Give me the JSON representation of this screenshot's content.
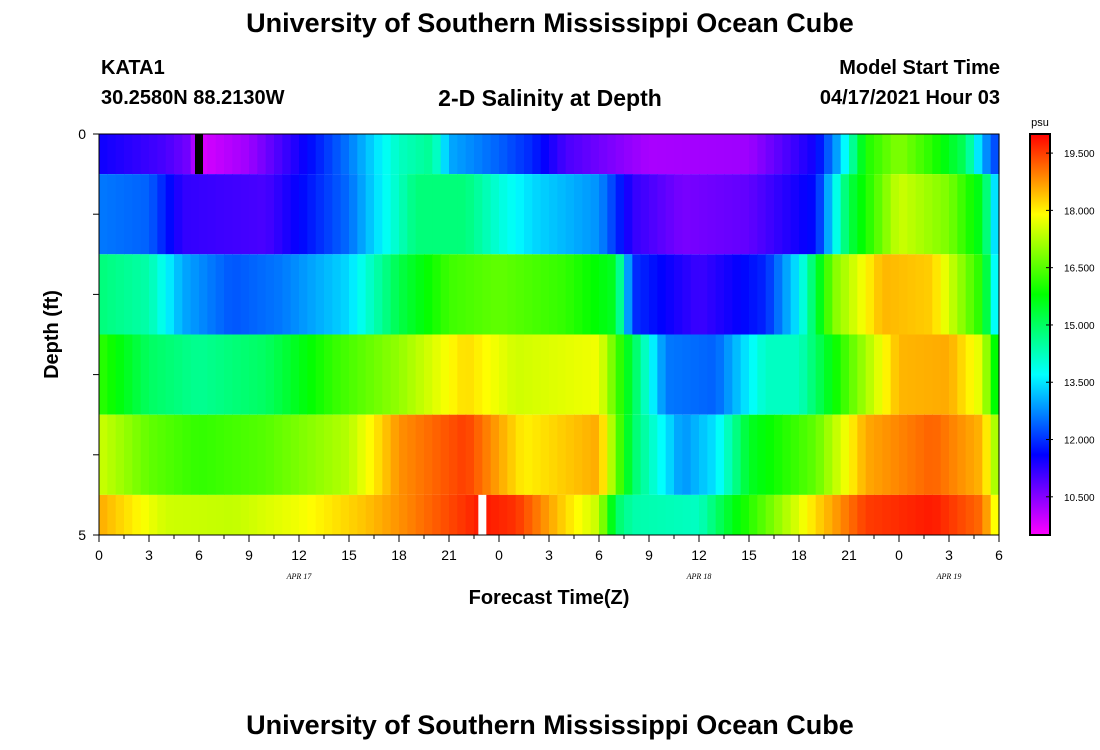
{
  "title": "University of Southern Mississippi Ocean Cube",
  "footer_title": "University of Southern Mississippi Ocean Cube",
  "station": {
    "id": "KATA1",
    "coords": "30.2580N  88.2130W"
  },
  "subtitle": "2-D Salinity at Depth",
  "model_start": {
    "label": "Model Start Time",
    "value": "04/17/2021 Hour 03"
  },
  "chart_data": {
    "type": "heatmap",
    "title": "2-D Salinity at Depth",
    "xlabel": "Forecast Time(Z)",
    "ylabel": "Depth (ft)",
    "x_hours": [
      0,
      54
    ],
    "x_tick_labels": [
      "0",
      "3",
      "6",
      "9",
      "12",
      "15",
      "18",
      "21",
      "0",
      "3",
      "6",
      "9",
      "12",
      "15",
      "18",
      "21",
      "0",
      "3",
      "6"
    ],
    "date_labels": [
      {
        "text": "APR 17",
        "hour": 12
      },
      {
        "text": "APR 18",
        "hour": 36
      },
      {
        "text": "APR 19",
        "hour": 51
      }
    ],
    "y_tick_labels": [
      "0",
      "5"
    ],
    "ylim": [
      0,
      5
    ],
    "colorbar": {
      "unit": "psu",
      "range": [
        9.5,
        20.0
      ],
      "tick_values": [
        10.5,
        12.0,
        13.5,
        15.0,
        16.5,
        18.0,
        19.5
      ],
      "tick_labels": [
        "10.500",
        "12.000",
        "13.500",
        "15.000",
        "16.500",
        "18.000",
        "19.500"
      ]
    },
    "rows": [
      {
        "depth_range": [
          0,
          0.5
        ],
        "knots": [
          [
            0,
            11.5
          ],
          [
            4,
            11.0
          ],
          [
            5.5,
            10.6
          ],
          [
            6,
            9.8
          ],
          [
            9,
            10.3
          ],
          [
            13,
            11.8
          ],
          [
            15,
            12.6
          ],
          [
            18,
            14.2
          ],
          [
            20,
            14.6
          ],
          [
            21,
            13.0
          ],
          [
            24,
            12.4
          ],
          [
            26,
            11.9
          ],
          [
            28,
            11.0
          ],
          [
            33,
            10.2
          ],
          [
            39,
            10.3
          ],
          [
            43,
            11.5
          ],
          [
            44.5,
            13.2
          ],
          [
            46,
            16.0
          ],
          [
            48,
            16.9
          ],
          [
            50,
            16.1
          ],
          [
            52,
            15.0
          ],
          [
            53,
            13.0
          ],
          [
            54,
            12.0
          ]
        ]
      },
      {
        "depth_range": [
          0.5,
          1.5
        ],
        "knots": [
          [
            0,
            12.6
          ],
          [
            3,
            12.4
          ],
          [
            5,
            11.2
          ],
          [
            10,
            11.0
          ],
          [
            15,
            12.5
          ],
          [
            19,
            14.8
          ],
          [
            22,
            14.8
          ],
          [
            24,
            14.0
          ],
          [
            26,
            13.4
          ],
          [
            30,
            12.8
          ],
          [
            32,
            11.2
          ],
          [
            35,
            10.6
          ],
          [
            39,
            10.8
          ],
          [
            43,
            11.7
          ],
          [
            45,
            15.2
          ],
          [
            48,
            17.5
          ],
          [
            51,
            16.8
          ],
          [
            53,
            15.5
          ],
          [
            54,
            12.8
          ]
        ]
      },
      {
        "depth_range": [
          1.5,
          2.5
        ],
        "knots": [
          [
            0,
            14.8
          ],
          [
            3,
            14.4
          ],
          [
            5,
            13.0
          ],
          [
            8,
            12.3
          ],
          [
            11,
            12.6
          ],
          [
            15,
            13.4
          ],
          [
            18,
            15.2
          ],
          [
            21,
            16.3
          ],
          [
            24,
            16.6
          ],
          [
            28,
            16.2
          ],
          [
            31,
            15.5
          ],
          [
            32,
            12.0
          ],
          [
            36,
            11.1
          ],
          [
            40,
            11.9
          ],
          [
            42,
            13.6
          ],
          [
            44,
            16.8
          ],
          [
            47,
            18.5
          ],
          [
            50,
            18.3
          ],
          [
            53,
            16.0
          ],
          [
            54,
            13.0
          ]
        ]
      },
      {
        "depth_range": [
          2.5,
          3.5
        ],
        "knots": [
          [
            0,
            16.2
          ],
          [
            3,
            15.0
          ],
          [
            6,
            14.6
          ],
          [
            10,
            15.0
          ],
          [
            14,
            16.2
          ],
          [
            18,
            17.0
          ],
          [
            22,
            18.2
          ],
          [
            25,
            17.5
          ],
          [
            30,
            17.8
          ],
          [
            32,
            15.2
          ],
          [
            34,
            12.6
          ],
          [
            37,
            12.4
          ],
          [
            40,
            14.2
          ],
          [
            42,
            14.2
          ],
          [
            45,
            16.5
          ],
          [
            48,
            18.5
          ],
          [
            51,
            18.6
          ],
          [
            53,
            17.6
          ],
          [
            54,
            15.2
          ]
        ]
      },
      {
        "depth_range": [
          3.5,
          4.5
        ],
        "knots": [
          [
            0,
            17.5
          ],
          [
            3,
            16.6
          ],
          [
            6,
            16.2
          ],
          [
            10,
            16.5
          ],
          [
            15,
            17.3
          ],
          [
            18,
            18.8
          ],
          [
            22,
            19.5
          ],
          [
            25.5,
            18.0
          ],
          [
            30,
            18.6
          ],
          [
            32,
            15.0
          ],
          [
            35,
            12.8
          ],
          [
            37,
            13.5
          ],
          [
            39,
            15.5
          ],
          [
            43,
            16.6
          ],
          [
            46,
            18.6
          ],
          [
            50,
            19.2
          ],
          [
            53,
            18.5
          ],
          [
            54,
            16.8
          ]
        ]
      },
      {
        "depth_range": [
          4.5,
          5.0
        ],
        "knots": [
          [
            0,
            18.6
          ],
          [
            4,
            17.5
          ],
          [
            8,
            17.4
          ],
          [
            12,
            17.8
          ],
          [
            16,
            18.4
          ],
          [
            20,
            19.2
          ],
          [
            23,
            19.8
          ],
          [
            25,
            19.6
          ],
          [
            28,
            18.2
          ],
          [
            30,
            17.4
          ],
          [
            31,
            15.0
          ],
          [
            32,
            14.4
          ],
          [
            36,
            14.2
          ],
          [
            38,
            15.6
          ],
          [
            40,
            16.6
          ],
          [
            43,
            18.2
          ],
          [
            46,
            19.5
          ],
          [
            50,
            19.8
          ],
          [
            53,
            19.1
          ],
          [
            54,
            17.5
          ]
        ]
      }
    ],
    "markers": [
      {
        "hour": 6,
        "depth_range": [
          0,
          0.5
        ],
        "color": "#000000"
      },
      {
        "hour": 23,
        "depth_range": [
          4.5,
          5.0
        ],
        "color": "#ffffff"
      }
    ]
  }
}
